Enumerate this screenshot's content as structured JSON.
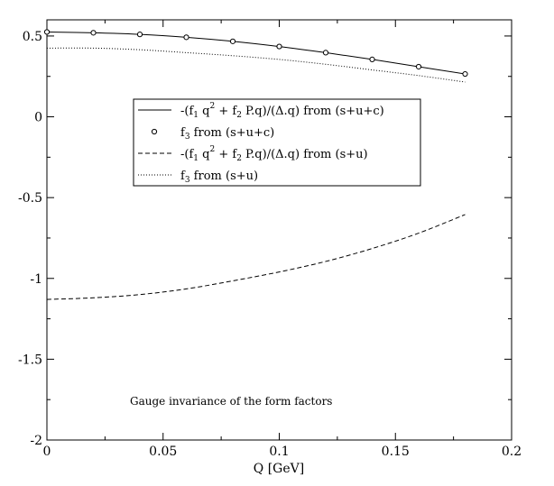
{
  "chart_data": {
    "type": "line",
    "xlabel": "Q [GeV]",
    "ylabel": "",
    "xlim": [
      0,
      0.2
    ],
    "ylim": [
      -2,
      0.6
    ],
    "xticks": [
      0,
      0.05,
      0.1,
      0.15,
      0.2
    ],
    "xtick_labels": [
      "0",
      "0.05",
      "0.1",
      "0.15",
      "0.2"
    ],
    "yticks": [
      -2,
      -1.5,
      -1,
      -0.5,
      0,
      0.5
    ],
    "ytick_labels": [
      "-2",
      "-1.5",
      "-1",
      "-0.5",
      "0",
      "0.5"
    ],
    "grid": false,
    "legend_position": "center-right",
    "annotation": "Gauge invariance of the form factors",
    "series": [
      {
        "name": "-(f1 q2 + f2 P.q)/(Δ.q) from (s+u+c)",
        "style": "solid",
        "x": [
          0,
          0.02,
          0.04,
          0.06,
          0.08,
          0.1,
          0.12,
          0.14,
          0.16,
          0.18
        ],
        "y": [
          0.525,
          0.52,
          0.51,
          0.492,
          0.467,
          0.435,
          0.397,
          0.355,
          0.31,
          0.265
        ]
      },
      {
        "name": "f3 from (s+u+c)",
        "style": "markers",
        "x": [
          0,
          0.02,
          0.04,
          0.06,
          0.08,
          0.1,
          0.12,
          0.14,
          0.16,
          0.18
        ],
        "y": [
          0.525,
          0.52,
          0.51,
          0.492,
          0.467,
          0.435,
          0.397,
          0.355,
          0.31,
          0.265
        ]
      },
      {
        "name": "-(f1 q2 + f2 P.q)/(Δ.q) from (s+u)",
        "style": "dashed",
        "x": [
          0,
          0.02,
          0.04,
          0.06,
          0.08,
          0.1,
          0.12,
          0.14,
          0.16,
          0.18
        ],
        "y": [
          -1.13,
          -1.12,
          -1.1,
          -1.065,
          -1.015,
          -0.96,
          -0.895,
          -0.815,
          -0.72,
          -0.605
        ]
      },
      {
        "name": "f3 from (s+u)",
        "style": "dotted",
        "x": [
          0,
          0.02,
          0.04,
          0.06,
          0.08,
          0.1,
          0.12,
          0.14,
          0.16,
          0.18
        ],
        "y": [
          0.425,
          0.425,
          0.415,
          0.397,
          0.378,
          0.355,
          0.325,
          0.29,
          0.255,
          0.215
        ]
      }
    ]
  },
  "legend": {
    "entries": [
      {
        "pre": "-(f",
        "s1": "1",
        "mid1": " q",
        "sup": "2",
        "mid2": " + f",
        "s2": "2",
        "post": " P.q)/(Δ.q) from (s+u+c)"
      },
      {
        "pre": "f",
        "s1": "3",
        "post": " from (s+u+c)"
      },
      {
        "pre": "-(f",
        "s1": "1",
        "mid1": " q",
        "sup": "2",
        "mid2": " + f",
        "s2": "2",
        "post": " P.q)/(Δ.q) from (s+u)"
      },
      {
        "pre": "f",
        "s1": "3",
        "post": " from (s+u)"
      }
    ]
  }
}
